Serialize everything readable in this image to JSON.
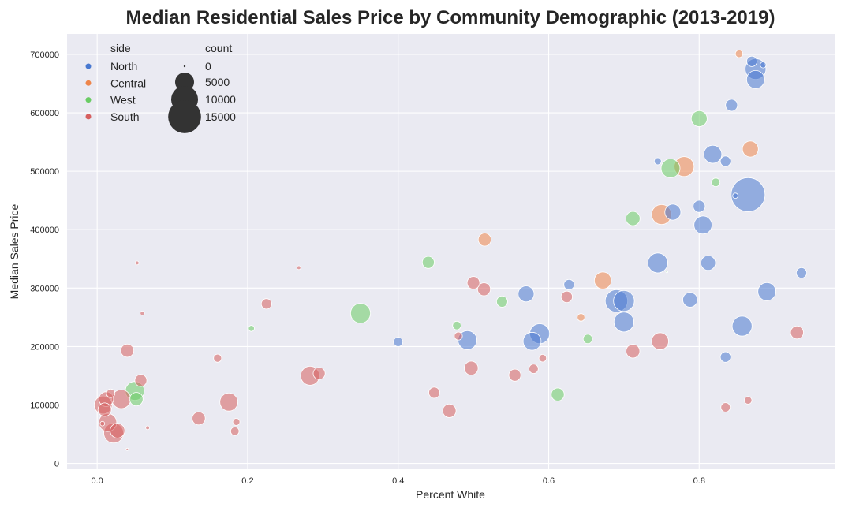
{
  "chart_data": {
    "type": "scatter",
    "title": "Median Residential Sales Price by Community Demographic (2013-2019)",
    "xlabel": "Percent White",
    "ylabel": "Median Sales Price",
    "xlim": [
      -0.04,
      0.98
    ],
    "ylim": [
      -10000,
      735000
    ],
    "xticks": [
      0.0,
      0.2,
      0.4,
      0.6,
      0.8
    ],
    "xtick_labels": [
      "0.0",
      "0.2",
      "0.4",
      "0.6",
      "0.8"
    ],
    "yticks": [
      0,
      100000,
      200000,
      300000,
      400000,
      500000,
      600000,
      700000
    ],
    "ytick_labels": [
      "0",
      "100000",
      "200000",
      "300000",
      "400000",
      "500000",
      "600000",
      "700000"
    ],
    "grid": true,
    "hue_title": "side",
    "size_title": "count",
    "colors": {
      "North": "#4878d0",
      "Central": "#ee854a",
      "West": "#6acc64",
      "South": "#d65f5f"
    },
    "size_legend": [
      {
        "label": "0",
        "count": 0
      },
      {
        "label": "5000",
        "count": 5000
      },
      {
        "label": "10000",
        "count": 10000
      },
      {
        "label": "15000",
        "count": 15000
      }
    ],
    "series": [
      {
        "name": "North",
        "points": [
          [
            0.865,
            460000,
            16000
          ],
          [
            0.875,
            675000,
            6000
          ],
          [
            0.875,
            657000,
            4500
          ],
          [
            0.87,
            688000,
            1500
          ],
          [
            0.885,
            682000,
            500
          ],
          [
            0.843,
            613000,
            2000
          ],
          [
            0.818,
            529000,
            4500
          ],
          [
            0.835,
            517000,
            1500
          ],
          [
            0.745,
            517000,
            700
          ],
          [
            0.848,
            458000,
            400
          ],
          [
            0.765,
            430000,
            3500
          ],
          [
            0.8,
            440000,
            2000
          ],
          [
            0.805,
            408000,
            4500
          ],
          [
            0.745,
            343000,
            5500
          ],
          [
            0.812,
            343000,
            3000
          ],
          [
            0.936,
            326000,
            1500
          ],
          [
            0.89,
            294000,
            4500
          ],
          [
            0.788,
            280000,
            3000
          ],
          [
            0.69,
            278000,
            7000
          ],
          [
            0.7,
            278000,
            6000
          ],
          [
            0.7,
            242000,
            5500
          ],
          [
            0.857,
            235000,
            5500
          ],
          [
            0.835,
            182000,
            1500
          ],
          [
            0.627,
            306000,
            1500
          ],
          [
            0.57,
            290000,
            3500
          ],
          [
            0.588,
            222000,
            5500
          ],
          [
            0.578,
            209000,
            4500
          ],
          [
            0.492,
            211000,
            5000
          ],
          [
            0.4,
            208000,
            1200
          ]
        ]
      },
      {
        "name": "Central",
        "points": [
          [
            0.853,
            701000,
            800
          ],
          [
            0.868,
            538000,
            3500
          ],
          [
            0.78,
            508000,
            5500
          ],
          [
            0.75,
            426000,
            5500
          ],
          [
            0.515,
            383000,
            2300
          ],
          [
            0.672,
            313000,
            4000
          ],
          [
            0.643,
            250000,
            800
          ]
        ]
      },
      {
        "name": "West",
        "points": [
          [
            0.8,
            590000,
            3500
          ],
          [
            0.762,
            505000,
            5000
          ],
          [
            0.822,
            481000,
            1000
          ],
          [
            0.712,
            419000,
            2800
          ],
          [
            0.757,
            328000,
            50
          ],
          [
            0.44,
            344000,
            2000
          ],
          [
            0.538,
            277000,
            1700
          ],
          [
            0.478,
            236000,
            1000
          ],
          [
            0.652,
            213000,
            1200
          ],
          [
            0.35,
            257000,
            5500
          ],
          [
            0.205,
            231000,
            500
          ],
          [
            0.612,
            118000,
            2300
          ],
          [
            0.05,
            124000,
            5000
          ],
          [
            0.052,
            110000,
            2500
          ]
        ]
      },
      {
        "name": "South",
        "points": [
          [
            0.053,
            343000,
            200
          ],
          [
            0.268,
            335000,
            200
          ],
          [
            0.06,
            257000,
            250
          ],
          [
            0.225,
            273000,
            1500
          ],
          [
            0.5,
            309000,
            2200
          ],
          [
            0.514,
            298000,
            2300
          ],
          [
            0.624,
            285000,
            1800
          ],
          [
            0.48,
            218000,
            900
          ],
          [
            0.592,
            180000,
            800
          ],
          [
            0.04,
            193000,
            2400
          ],
          [
            0.16,
            180000,
            900
          ],
          [
            0.058,
            142000,
            2000
          ],
          [
            0.032,
            110000,
            5000
          ],
          [
            0.008,
            100000,
            4500
          ],
          [
            0.012,
            110000,
            3000
          ],
          [
            0.018,
            120000,
            1000
          ],
          [
            0.01,
            92000,
            2500
          ],
          [
            0.014,
            70000,
            4500
          ],
          [
            0.022,
            52000,
            5500
          ],
          [
            0.027,
            56000,
            3000
          ],
          [
            0.007,
            68000,
            300
          ],
          [
            0.067,
            61000,
            200
          ],
          [
            0.04,
            24000,
            80
          ],
          [
            0.135,
            77000,
            2400
          ],
          [
            0.175,
            105000,
            4500
          ],
          [
            0.183,
            55000,
            1000
          ],
          [
            0.185,
            71000,
            700
          ],
          [
            0.283,
            150000,
            5000
          ],
          [
            0.295,
            154000,
            2000
          ],
          [
            0.448,
            121000,
            1700
          ],
          [
            0.468,
            90000,
            2500
          ],
          [
            0.497,
            163000,
            2700
          ],
          [
            0.555,
            151000,
            2000
          ],
          [
            0.58,
            162000,
            1200
          ],
          [
            0.712,
            192000,
            2600
          ],
          [
            0.748,
            209000,
            4000
          ],
          [
            0.835,
            96000,
            1200
          ],
          [
            0.865,
            108000,
            800
          ],
          [
            0.93,
            224000,
            2300
          ]
        ]
      }
    ]
  }
}
